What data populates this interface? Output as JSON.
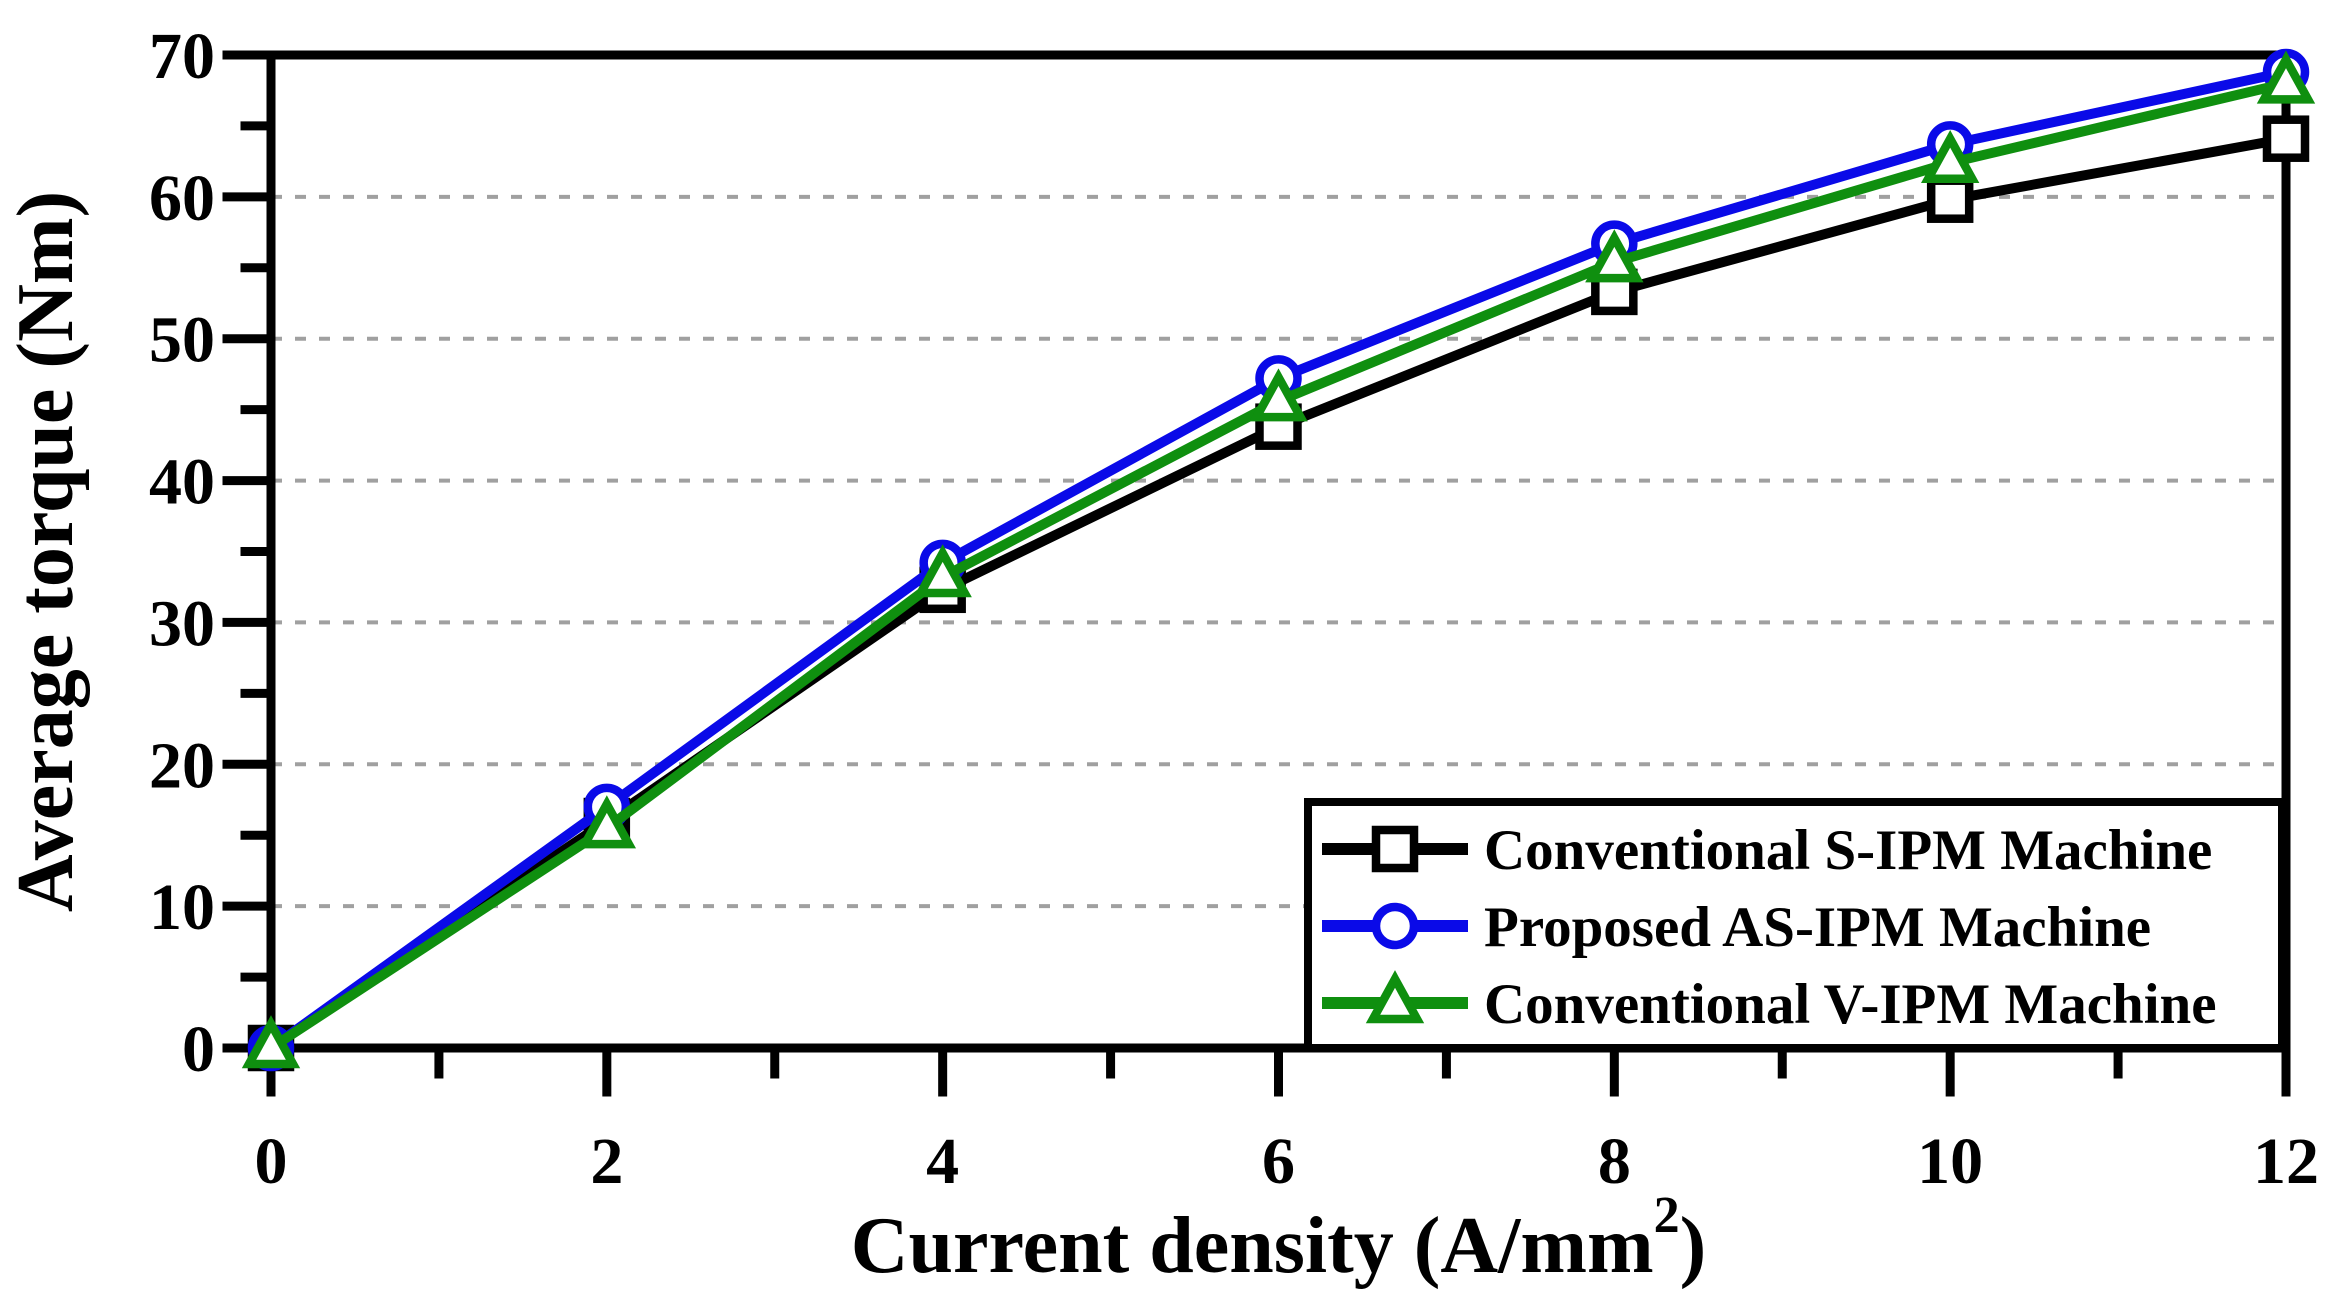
{
  "figure": {
    "background": "#ffffff",
    "frame_color": "#000000",
    "grid_color": "#a0a0a0"
  },
  "chart_data": {
    "type": "line",
    "title": "",
    "xlabel": "Current density (A/mm²)",
    "xlabel_parts": {
      "pre": "Current density (A/mm",
      "sup": "2",
      "post": ")"
    },
    "ylabel": "Average torque (Nm)",
    "xlim": [
      0,
      12
    ],
    "ylim": [
      0,
      70
    ],
    "x_major_step": 2,
    "x_minor_step": 1,
    "y_major_step": 10,
    "y_minor_step": 5,
    "x_tick_labels": [
      "0",
      "2",
      "4",
      "6",
      "8",
      "10",
      "12"
    ],
    "y_tick_labels": [
      "0",
      "10",
      "20",
      "30",
      "40",
      "50",
      "60",
      "70"
    ],
    "grid": "horizontal-dashed",
    "legend_position": "bottom-right",
    "x": [
      0,
      2,
      4,
      6,
      8,
      10,
      12
    ],
    "series": [
      {
        "name": "Conventional S-IPM Machine",
        "color": "#000000",
        "marker": "square",
        "values": [
          0,
          16.0,
          32.3,
          43.8,
          53.3,
          59.8,
          64.1
        ]
      },
      {
        "name": "Proposed AS-IPM Machine",
        "color": "#0a0ae8",
        "marker": "circle",
        "values": [
          0,
          17.0,
          34.2,
          47.2,
          56.7,
          63.7,
          68.8
        ]
      },
      {
        "name": "Conventional V-IPM Machine",
        "color": "#0f8f0f",
        "marker": "triangle",
        "values": [
          0,
          15.5,
          33.2,
          45.6,
          55.4,
          62.4,
          68.0
        ]
      }
    ]
  }
}
